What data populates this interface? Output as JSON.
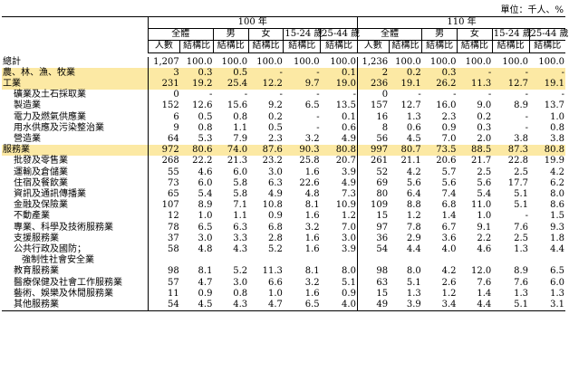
{
  "unit_text": "單位：千人、%",
  "header": {
    "year_a": "100 年",
    "year_b": "110 年",
    "groups": [
      "全體",
      "男",
      "女",
      "15-24 歲",
      "25-44 歲"
    ],
    "col_count": "人數",
    "col_share": "結構比"
  },
  "rows": [
    {
      "label": "總計",
      "indent": 0,
      "hl": false,
      "a": [
        "1,207",
        "100.0",
        "100.0",
        "100.0",
        "100.0",
        "100.0"
      ],
      "b": [
        "1,236",
        "100.0",
        "100.0",
        "100.0",
        "100.0",
        "100.0"
      ],
      "bold_b": []
    },
    {
      "label": "農、林、漁、牧業",
      "indent": 0,
      "hl": true,
      "a": [
        "3",
        "0.3",
        "0.5",
        "-",
        "-",
        "0.1"
      ],
      "b": [
        "2",
        "0.2",
        "0.3",
        "-",
        "-",
        "-"
      ],
      "bold_b": []
    },
    {
      "label": "工業",
      "indent": 0,
      "hl": true,
      "a": [
        "231",
        "19.2",
        "25.4",
        "12.2",
        "9.7",
        "19.0"
      ],
      "b": [
        "236",
        "19.1",
        "26.2",
        "11.3",
        "12.7",
        "19.1"
      ],
      "bold_b": []
    },
    {
      "label": "礦業及土石採取業",
      "indent": 1,
      "hl": false,
      "a": [
        "0",
        "-",
        "-",
        "-",
        "-",
        "-"
      ],
      "b": [
        "0",
        "-",
        "-",
        "-",
        "-",
        "-"
      ],
      "bold_b": []
    },
    {
      "label": "製造業",
      "indent": 1,
      "hl": false,
      "a": [
        "152",
        "12.6",
        "15.6",
        "9.2",
        "6.5",
        "13.5"
      ],
      "b": [
        "157",
        "12.7",
        "16.0",
        "9.0",
        "8.9",
        "13.7"
      ],
      "bold_b": [
        2,
        3,
        5
      ]
    },
    {
      "label": "電力及燃氣供應業",
      "indent": 1,
      "hl": false,
      "a": [
        "6",
        "0.5",
        "0.8",
        "0.2",
        "-",
        "0.1"
      ],
      "b": [
        "16",
        "1.3",
        "2.3",
        "0.2",
        "-",
        "1.0"
      ],
      "bold_b": []
    },
    {
      "label": "用水供應及污染整治業",
      "indent": 1,
      "hl": false,
      "a": [
        "9",
        "0.8",
        "1.1",
        "0.5",
        "-",
        "0.6"
      ],
      "b": [
        "8",
        "0.6",
        "0.9",
        "0.3",
        "-",
        "0.8"
      ],
      "bold_b": []
    },
    {
      "label": "營造業",
      "indent": 1,
      "hl": false,
      "a": [
        "64",
        "5.3",
        "7.9",
        "2.3",
        "3.2",
        "4.9"
      ],
      "b": [
        "56",
        "4.5",
        "7.0",
        "2.0",
        "3.8",
        "3.8"
      ],
      "bold_b": []
    },
    {
      "label": "服務業",
      "indent": 0,
      "hl": true,
      "a": [
        "972",
        "80.6",
        "74.0",
        "87.6",
        "90.3",
        "80.8"
      ],
      "b": [
        "997",
        "80.7",
        "73.5",
        "88.5",
        "87.3",
        "80.8"
      ],
      "bold_b": []
    },
    {
      "label": "批發及零售業",
      "indent": 1,
      "hl": false,
      "a": [
        "268",
        "22.2",
        "21.3",
        "23.2",
        "25.8",
        "20.7"
      ],
      "b": [
        "261",
        "21.1",
        "20.6",
        "21.7",
        "22.8",
        "19.9"
      ],
      "bold_b": [
        2,
        3,
        4,
        5
      ]
    },
    {
      "label": "運輸及倉儲業",
      "indent": 1,
      "hl": false,
      "a": [
        "55",
        "4.6",
        "6.0",
        "3.0",
        "1.6",
        "3.9"
      ],
      "b": [
        "52",
        "4.2",
        "5.7",
        "2.5",
        "2.5",
        "4.2"
      ],
      "bold_b": []
    },
    {
      "label": "住宿及餐飲業",
      "indent": 1,
      "hl": false,
      "a": [
        "73",
        "6.0",
        "5.8",
        "6.3",
        "22.6",
        "4.9"
      ],
      "b": [
        "69",
        "5.6",
        "5.6",
        "5.6",
        "17.7",
        "6.2"
      ],
      "bold_b": [
        4
      ]
    },
    {
      "label": "資訊及通訊傳播業",
      "indent": 1,
      "hl": false,
      "a": [
        "65",
        "5.4",
        "5.8",
        "4.9",
        "4.8",
        "7.3"
      ],
      "b": [
        "80",
        "6.4",
        "7.4",
        "5.4",
        "5.1",
        "8.0"
      ],
      "bold_b": []
    },
    {
      "label": "金融及保險業",
      "indent": 1,
      "hl": false,
      "a": [
        "107",
        "8.9",
        "7.1",
        "10.8",
        "8.1",
        "10.9"
      ],
      "b": [
        "109",
        "8.8",
        "6.8",
        "11.0",
        "5.1",
        "8.6"
      ],
      "bold_b": [
        3
      ]
    },
    {
      "label": "不動產業",
      "indent": 1,
      "hl": false,
      "a": [
        "12",
        "1.0",
        "1.1",
        "0.9",
        "1.6",
        "1.2"
      ],
      "b": [
        "15",
        "1.2",
        "1.4",
        "1.0",
        "-",
        "1.5"
      ],
      "bold_b": []
    },
    {
      "label": "專業、科學及技術服務業",
      "indent": 1,
      "hl": false,
      "a": [
        "78",
        "6.5",
        "6.3",
        "6.8",
        "3.2",
        "7.0"
      ],
      "b": [
        "97",
        "7.8",
        "6.7",
        "9.1",
        "7.6",
        "9.3"
      ],
      "bold_b": [
        3
      ]
    },
    {
      "label": "支援服務業",
      "indent": 1,
      "hl": false,
      "a": [
        "37",
        "3.0",
        "3.3",
        "2.8",
        "1.6",
        "3.0"
      ],
      "b": [
        "36",
        "2.9",
        "3.6",
        "2.2",
        "2.5",
        "1.8"
      ],
      "bold_b": []
    },
    {
      "label": "公共行政及國防；",
      "indent": 1,
      "hl": false,
      "a": [
        "58",
        "4.8",
        "4.3",
        "5.2",
        "1.6",
        "3.9"
      ],
      "b": [
        "54",
        "4.4",
        "4.0",
        "4.6",
        "1.3",
        "4.4"
      ],
      "bold_b": []
    },
    {
      "label": "強制性社會安全業",
      "indent": 2,
      "hl": false,
      "a": [
        "",
        "",
        "",
        "",
        "",
        ""
      ],
      "b": [
        "",
        "",
        "",
        "",
        "",
        ""
      ],
      "bold_b": []
    },
    {
      "label": "教育服務業",
      "indent": 1,
      "hl": false,
      "a": [
        "98",
        "8.1",
        "5.2",
        "11.3",
        "8.1",
        "8.0"
      ],
      "b": [
        "98",
        "8.0",
        "4.2",
        "12.0",
        "8.9",
        "6.5"
      ],
      "bold_b": [
        3
      ]
    },
    {
      "label": "醫療保健及社會工作服務業",
      "indent": 1,
      "hl": false,
      "a": [
        "57",
        "4.7",
        "3.0",
        "6.6",
        "3.2",
        "5.1"
      ],
      "b": [
        "63",
        "5.1",
        "2.6",
        "7.6",
        "7.6",
        "6.0"
      ],
      "bold_b": []
    },
    {
      "label": "藝術、娛樂及休閒服務業",
      "indent": 1,
      "hl": false,
      "a": [
        "11",
        "0.9",
        "0.8",
        "1.0",
        "1.6",
        "0.9"
      ],
      "b": [
        "15",
        "1.3",
        "1.2",
        "1.4",
        "1.3",
        "1.3"
      ],
      "bold_b": []
    },
    {
      "label": "其他服務業",
      "indent": 1,
      "hl": false,
      "a": [
        "54",
        "4.5",
        "4.3",
        "4.7",
        "6.5",
        "4.0"
      ],
      "b": [
        "49",
        "3.9",
        "3.4",
        "4.4",
        "5.1",
        "3.1"
      ],
      "bold_b": []
    }
  ]
}
